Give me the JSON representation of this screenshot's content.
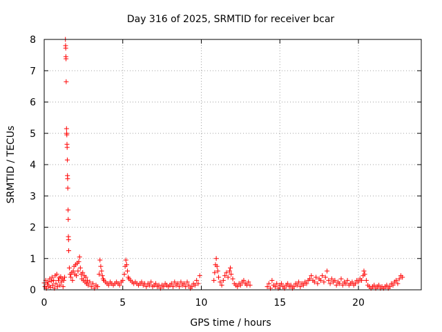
{
  "chart_data": {
    "type": "scatter",
    "title": "Day 316 of 2025, SRMTID for receiver bcar",
    "xlabel": "GPS time / hours",
    "ylabel": "SRMTID / TECUs",
    "xlim": [
      0,
      24
    ],
    "ylim": [
      0,
      8
    ],
    "grid": true,
    "marker": "plus",
    "colors": {
      "series": "#ff0000",
      "grid": "#a0a0a0",
      "axis": "#000000"
    },
    "x_ticks": [
      0,
      5,
      10,
      15,
      20
    ],
    "y_ticks": [
      0,
      1,
      2,
      3,
      4,
      5,
      6,
      7,
      8
    ],
    "series": [
      {
        "name": "SRMTID",
        "points": [
          [
            0.0,
            0.22
          ],
          [
            0.05,
            0.1
          ],
          [
            0.1,
            0.3
          ],
          [
            0.15,
            0.05
          ],
          [
            0.2,
            0.18
          ],
          [
            0.25,
            0.25
          ],
          [
            0.3,
            0.12
          ],
          [
            0.35,
            0.35
          ],
          [
            0.4,
            0.08
          ],
          [
            0.45,
            0.28
          ],
          [
            0.5,
            0.4
          ],
          [
            0.55,
            0.15
          ],
          [
            0.6,
            0.3
          ],
          [
            0.65,
            0.05
          ],
          [
            0.7,
            0.45
          ],
          [
            0.75,
            0.2
          ],
          [
            0.8,
            0.5
          ],
          [
            0.85,
            0.1
          ],
          [
            0.9,
            0.3
          ],
          [
            0.95,
            0.38
          ],
          [
            1.0,
            0.15
          ],
          [
            1.05,
            0.42
          ],
          [
            1.1,
            0.25
          ],
          [
            1.15,
            0.35
          ],
          [
            1.2,
            0.1
          ],
          [
            1.25,
            0.3
          ],
          [
            1.3,
            0.4
          ],
          [
            1.35,
            8.0
          ],
          [
            1.36,
            7.8
          ],
          [
            1.37,
            7.72
          ],
          [
            1.38,
            7.45
          ],
          [
            1.39,
            7.38
          ],
          [
            1.4,
            6.65
          ],
          [
            1.42,
            5.15
          ],
          [
            1.43,
            5.0
          ],
          [
            1.44,
            4.95
          ],
          [
            1.45,
            4.65
          ],
          [
            1.46,
            4.55
          ],
          [
            1.47,
            4.15
          ],
          [
            1.48,
            3.65
          ],
          [
            1.49,
            3.55
          ],
          [
            1.5,
            3.25
          ],
          [
            1.52,
            2.55
          ],
          [
            1.53,
            2.25
          ],
          [
            1.54,
            1.7
          ],
          [
            1.55,
            1.6
          ],
          [
            1.56,
            1.25
          ],
          [
            1.6,
            0.7
          ],
          [
            1.65,
            0.5
          ],
          [
            1.7,
            0.4
          ],
          [
            1.75,
            0.55
          ],
          [
            1.8,
            0.3
          ],
          [
            1.85,
            0.6
          ],
          [
            1.9,
            0.75
          ],
          [
            1.95,
            0.5
          ],
          [
            2.0,
            0.8
          ],
          [
            2.05,
            0.45
          ],
          [
            2.1,
            0.85
          ],
          [
            2.15,
            0.6
          ],
          [
            2.2,
            0.9
          ],
          [
            2.25,
            1.05
          ],
          [
            2.3,
            0.7
          ],
          [
            2.35,
            0.5
          ],
          [
            2.4,
            0.35
          ],
          [
            2.45,
            0.55
          ],
          [
            2.5,
            0.3
          ],
          [
            2.55,
            0.45
          ],
          [
            2.6,
            0.25
          ],
          [
            2.65,
            0.4
          ],
          [
            2.7,
            0.2
          ],
          [
            2.75,
            0.3
          ],
          [
            2.8,
            0.15
          ],
          [
            2.9,
            0.25
          ],
          [
            3.0,
            0.1
          ],
          [
            3.1,
            0.2
          ],
          [
            3.2,
            0.05
          ],
          [
            3.3,
            0.15
          ],
          [
            3.4,
            0.1
          ],
          [
            3.5,
            0.5
          ],
          [
            3.55,
            0.95
          ],
          [
            3.6,
            0.75
          ],
          [
            3.65,
            0.6
          ],
          [
            3.7,
            0.45
          ],
          [
            3.75,
            0.35
          ],
          [
            3.8,
            0.3
          ],
          [
            3.9,
            0.25
          ],
          [
            4.0,
            0.2
          ],
          [
            4.1,
            0.15
          ],
          [
            4.2,
            0.25
          ],
          [
            4.3,
            0.2
          ],
          [
            4.4,
            0.15
          ],
          [
            4.5,
            0.2
          ],
          [
            4.6,
            0.25
          ],
          [
            4.7,
            0.2
          ],
          [
            4.8,
            0.15
          ],
          [
            4.9,
            0.25
          ],
          [
            5.0,
            0.3
          ],
          [
            5.1,
            0.5
          ],
          [
            5.15,
            0.75
          ],
          [
            5.2,
            0.95
          ],
          [
            5.25,
            0.8
          ],
          [
            5.3,
            0.6
          ],
          [
            5.35,
            0.4
          ],
          [
            5.4,
            0.35
          ],
          [
            5.5,
            0.3
          ],
          [
            5.6,
            0.25
          ],
          [
            5.7,
            0.2
          ],
          [
            5.8,
            0.25
          ],
          [
            5.9,
            0.2
          ],
          [
            6.0,
            0.15
          ],
          [
            6.1,
            0.2
          ],
          [
            6.2,
            0.25
          ],
          [
            6.3,
            0.15
          ],
          [
            6.4,
            0.2
          ],
          [
            6.5,
            0.1
          ],
          [
            6.6,
            0.2
          ],
          [
            6.7,
            0.15
          ],
          [
            6.8,
            0.25
          ],
          [
            6.9,
            0.1
          ],
          [
            7.0,
            0.15
          ],
          [
            7.1,
            0.2
          ],
          [
            7.2,
            0.1
          ],
          [
            7.3,
            0.15
          ],
          [
            7.4,
            0.05
          ],
          [
            7.5,
            0.15
          ],
          [
            7.6,
            0.1
          ],
          [
            7.7,
            0.2
          ],
          [
            7.8,
            0.15
          ],
          [
            7.9,
            0.1
          ],
          [
            8.0,
            0.15
          ],
          [
            8.1,
            0.2
          ],
          [
            8.2,
            0.1
          ],
          [
            8.3,
            0.25
          ],
          [
            8.4,
            0.15
          ],
          [
            8.5,
            0.2
          ],
          [
            8.6,
            0.1
          ],
          [
            8.7,
            0.25
          ],
          [
            8.8,
            0.15
          ],
          [
            8.9,
            0.2
          ],
          [
            9.0,
            0.1
          ],
          [
            9.1,
            0.25
          ],
          [
            9.2,
            0.15
          ],
          [
            9.3,
            0.05
          ],
          [
            9.4,
            0.1
          ],
          [
            9.5,
            0.2
          ],
          [
            9.6,
            0.15
          ],
          [
            9.7,
            0.3
          ],
          [
            9.8,
            0.2
          ],
          [
            9.9,
            0.45
          ],
          [
            10.8,
            0.3
          ],
          [
            10.85,
            0.55
          ],
          [
            10.9,
            0.8
          ],
          [
            10.95,
            1.0
          ],
          [
            11.0,
            0.75
          ],
          [
            11.05,
            0.6
          ],
          [
            11.1,
            0.4
          ],
          [
            11.2,
            0.25
          ],
          [
            11.3,
            0.15
          ],
          [
            11.4,
            0.3
          ],
          [
            11.5,
            0.45
          ],
          [
            11.6,
            0.55
          ],
          [
            11.7,
            0.4
          ],
          [
            11.8,
            0.6
          ],
          [
            11.85,
            0.7
          ],
          [
            11.9,
            0.5
          ],
          [
            12.0,
            0.35
          ],
          [
            12.1,
            0.2
          ],
          [
            12.2,
            0.15
          ],
          [
            12.3,
            0.1
          ],
          [
            12.4,
            0.2
          ],
          [
            12.5,
            0.15
          ],
          [
            12.6,
            0.25
          ],
          [
            12.7,
            0.3
          ],
          [
            12.8,
            0.2
          ],
          [
            12.9,
            0.15
          ],
          [
            13.0,
            0.25
          ],
          [
            13.1,
            0.15
          ],
          [
            14.2,
            0.1
          ],
          [
            14.3,
            0.2
          ],
          [
            14.4,
            0.05
          ],
          [
            14.5,
            0.3
          ],
          [
            14.6,
            0.15
          ],
          [
            14.7,
            0.1
          ],
          [
            14.8,
            0.2
          ],
          [
            14.9,
            0.05
          ],
          [
            15.0,
            0.15
          ],
          [
            15.1,
            0.2
          ],
          [
            15.2,
            0.1
          ],
          [
            15.3,
            0.05
          ],
          [
            15.4,
            0.15
          ],
          [
            15.5,
            0.2
          ],
          [
            15.6,
            0.1
          ],
          [
            15.7,
            0.15
          ],
          [
            15.8,
            0.05
          ],
          [
            15.9,
            0.1
          ],
          [
            16.0,
            0.2
          ],
          [
            16.1,
            0.15
          ],
          [
            16.2,
            0.25
          ],
          [
            16.3,
            0.1
          ],
          [
            16.4,
            0.2
          ],
          [
            16.5,
            0.15
          ],
          [
            16.6,
            0.25
          ],
          [
            16.7,
            0.2
          ],
          [
            16.8,
            0.3
          ],
          [
            16.9,
            0.35
          ],
          [
            17.0,
            0.45
          ],
          [
            17.1,
            0.3
          ],
          [
            17.2,
            0.25
          ],
          [
            17.3,
            0.4
          ],
          [
            17.4,
            0.2
          ],
          [
            17.5,
            0.35
          ],
          [
            17.6,
            0.3
          ],
          [
            17.7,
            0.45
          ],
          [
            17.8,
            0.25
          ],
          [
            17.9,
            0.4
          ],
          [
            18.0,
            0.6
          ],
          [
            18.1,
            0.3
          ],
          [
            18.2,
            0.2
          ],
          [
            18.3,
            0.35
          ],
          [
            18.4,
            0.25
          ],
          [
            18.5,
            0.3
          ],
          [
            18.6,
            0.15
          ],
          [
            18.7,
            0.25
          ],
          [
            18.8,
            0.2
          ],
          [
            18.9,
            0.35
          ],
          [
            19.0,
            0.15
          ],
          [
            19.1,
            0.25
          ],
          [
            19.2,
            0.2
          ],
          [
            19.3,
            0.3
          ],
          [
            19.4,
            0.15
          ],
          [
            19.5,
            0.2
          ],
          [
            19.6,
            0.25
          ],
          [
            19.7,
            0.15
          ],
          [
            19.8,
            0.2
          ],
          [
            19.9,
            0.3
          ],
          [
            20.0,
            0.25
          ],
          [
            20.1,
            0.35
          ],
          [
            20.2,
            0.3
          ],
          [
            20.3,
            0.45
          ],
          [
            20.35,
            0.6
          ],
          [
            20.4,
            0.5
          ],
          [
            20.5,
            0.3
          ],
          [
            20.6,
            0.15
          ],
          [
            20.7,
            0.1
          ],
          [
            20.8,
            0.05
          ],
          [
            20.9,
            0.1
          ],
          [
            21.0,
            0.15
          ],
          [
            21.1,
            0.05
          ],
          [
            21.2,
            0.1
          ],
          [
            21.3,
            0.15
          ],
          [
            21.4,
            0.05
          ],
          [
            21.5,
            0.1
          ],
          [
            21.6,
            0.05
          ],
          [
            21.7,
            0.1
          ],
          [
            21.8,
            0.15
          ],
          [
            21.9,
            0.05
          ],
          [
            22.0,
            0.1
          ],
          [
            22.1,
            0.2
          ],
          [
            22.2,
            0.15
          ],
          [
            22.3,
            0.25
          ],
          [
            22.4,
            0.3
          ],
          [
            22.5,
            0.2
          ],
          [
            22.6,
            0.35
          ],
          [
            22.7,
            0.45
          ],
          [
            22.8,
            0.4
          ]
        ]
      }
    ]
  }
}
